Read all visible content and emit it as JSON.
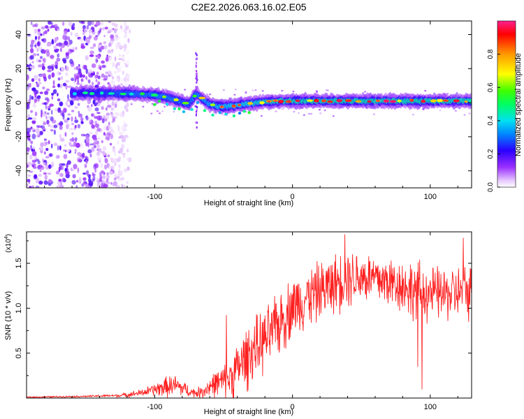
{
  "title": "C2E2.2026.063.16.02.E05",
  "chart_data": [
    {
      "type": "heatmap",
      "name": "spectrogram",
      "xlabel": "Height of straight line (km)",
      "ylabel": "Frequency (Hz)",
      "xlim": [
        -193,
        130
      ],
      "ylim": [
        -50,
        48
      ],
      "xticks": [
        -100,
        0,
        100
      ],
      "xtick_labels": [
        "-100",
        "0",
        "100"
      ],
      "yticks": [
        -40,
        -20,
        0,
        20,
        40
      ],
      "ytick_labels": [
        "-40",
        "-20",
        "0",
        "20",
        "40"
      ],
      "ridge": {
        "x": [
          -160,
          -140,
          -120,
          -110,
          -100,
          -90,
          -80,
          -75,
          -70,
          -60,
          -50,
          -40,
          -30,
          -20,
          -10,
          0,
          20,
          40,
          60,
          80,
          100,
          130
        ],
        "freq": [
          5.5,
          5.5,
          5.5,
          5.0,
          4.5,
          3.0,
          0.5,
          -1.0,
          5.0,
          -1.0,
          -2.5,
          -1.5,
          -0.5,
          0.5,
          1.0,
          1.0,
          1.0,
          1.0,
          1.0,
          1.0,
          1.0,
          1.0
        ],
        "amplitude": [
          0.35,
          0.45,
          0.55,
          0.55,
          0.6,
          0.6,
          0.55,
          0.55,
          0.6,
          0.65,
          0.7,
          0.75,
          0.75,
          0.8,
          0.8,
          0.85,
          0.85,
          0.85,
          0.85,
          0.85,
          0.9,
          0.9
        ]
      },
      "noise_region": {
        "x_range": [
          -193,
          -118
        ],
        "freq_range": [
          -50,
          48
        ]
      },
      "spike": {
        "x": -70,
        "freq_range": [
          -15,
          30
        ]
      }
    },
    {
      "type": "colorbar",
      "label": "Normalized spectral amplitude",
      "range": [
        0.0,
        1.0
      ],
      "ticks": [
        0.0,
        0.2,
        0.4,
        0.6,
        0.8
      ],
      "tick_labels": [
        "0.0",
        "0.2",
        "0.4",
        "0.6",
        "0.8"
      ]
    },
    {
      "type": "line",
      "name": "snr",
      "color": "#ff2020",
      "xlabel": "Height of straight line (km)",
      "ylabel": "SNR (10 * v/v)",
      "scale_label": "(x10",
      "scale_exp": "4",
      "xlim": [
        -193,
        130
      ],
      "ylim": [
        0,
        1.85
      ],
      "xticks": [
        -100,
        0,
        100
      ],
      "xtick_labels": [
        "-100",
        "0",
        "100"
      ],
      "yticks": [
        0.5,
        1.0,
        1.5
      ],
      "ytick_labels": [
        "0.5",
        "1.0",
        "1.5"
      ],
      "envelope": {
        "x": [
          -193,
          -150,
          -125,
          -110,
          -100,
          -95,
          -90,
          -85,
          -80,
          -75,
          -70,
          -65,
          -60,
          -55,
          -50,
          -45,
          -40,
          -35,
          -30,
          -25,
          -20,
          -15,
          -10,
          -5,
          0,
          10,
          20,
          30,
          40,
          50,
          60,
          70,
          80,
          90,
          100,
          110,
          120,
          130
        ],
        "base": [
          0.01,
          0.02,
          0.03,
          0.06,
          0.1,
          0.12,
          0.14,
          0.15,
          0.12,
          0.08,
          0.06,
          0.08,
          0.14,
          0.18,
          0.2,
          0.25,
          0.35,
          0.45,
          0.55,
          0.6,
          0.68,
          0.75,
          0.85,
          0.95,
          1.05,
          1.15,
          1.22,
          1.3,
          1.38,
          1.38,
          1.35,
          1.32,
          1.28,
          1.22,
          1.2,
          1.18,
          1.2,
          1.22
        ],
        "spread": [
          0.01,
          0.01,
          0.02,
          0.04,
          0.07,
          0.1,
          0.12,
          0.12,
          0.1,
          0.06,
          0.05,
          0.08,
          0.12,
          0.15,
          0.18,
          0.25,
          0.3,
          0.35,
          0.35,
          0.35,
          0.35,
          0.35,
          0.35,
          0.35,
          0.35,
          0.33,
          0.33,
          0.33,
          0.33,
          0.3,
          0.3,
          0.3,
          0.3,
          0.35,
          0.3,
          0.3,
          0.3,
          0.3
        ]
      },
      "peaks": [
        {
          "x": 38,
          "y": 1.82
        },
        {
          "x": 124,
          "y": 1.78
        },
        {
          "x": -48,
          "y": 0.92
        },
        {
          "x": -12,
          "y": 1.05
        }
      ],
      "dips": [
        {
          "x": 94,
          "y": 0.1
        },
        {
          "x": 91,
          "y": 0.35
        }
      ]
    }
  ]
}
